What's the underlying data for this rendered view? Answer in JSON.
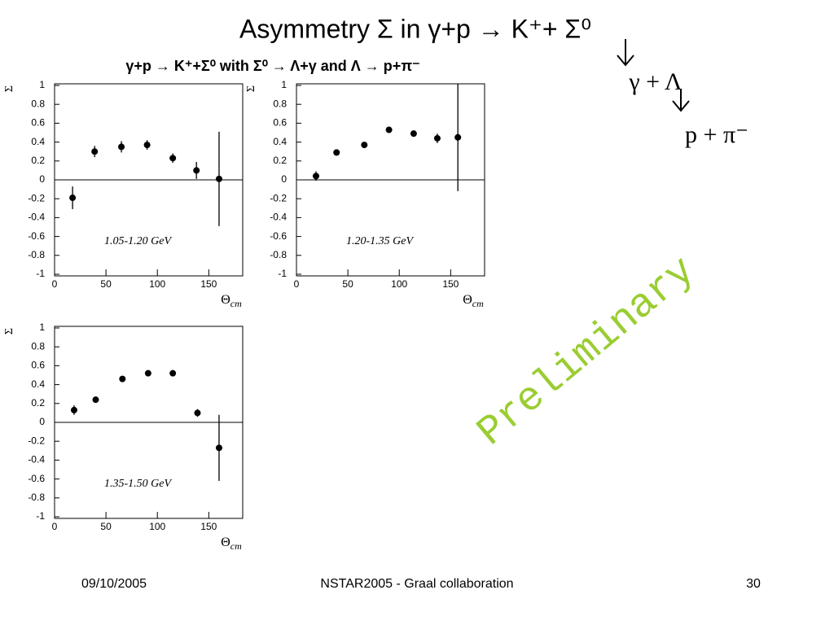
{
  "title": "Asymmetry Σ   in   γ+p → K⁺+ Σ⁰",
  "subtitle": "γ+p → K⁺+Σ⁰ with Σ⁰ → Λ+γ and Λ → p+π⁻",
  "decay": [
    "γ + Λ",
    "p + π⁻"
  ],
  "watermark": "Preliminary",
  "footer": {
    "date": "09/10/2005",
    "event": "NSTAR2005 - Graal collaboration",
    "page": "30"
  },
  "chart_data": [
    {
      "type": "scatter",
      "annotation": "1.05-1.20 GeV",
      "ylabel": "Σ",
      "xlabel": {
        "symbol": "Θ",
        "subscript": "cm"
      },
      "x": [
        17.5,
        39,
        65,
        90,
        115,
        138,
        160
      ],
      "values": [
        -0.19,
        0.3,
        0.35,
        0.37,
        0.23,
        0.1,
        0.01
      ],
      "errors": [
        0.12,
        0.06,
        0.06,
        0.05,
        0.05,
        0.09,
        0.5
      ],
      "color": "#000000",
      "xlim": [
        0,
        183
      ],
      "ylim": [
        -1,
        1
      ],
      "xticks": [
        0,
        50,
        100,
        150
      ],
      "yticks": [
        -1,
        -0.8,
        -0.6,
        -0.4,
        -0.2,
        0,
        0.2,
        0.4,
        0.6,
        0.8,
        1
      ]
    },
    {
      "type": "scatter",
      "annotation": "1.20-1.35 GeV",
      "ylabel": "Σ",
      "xlabel": {
        "symbol": "Θ",
        "subscript": "cm"
      },
      "x": [
        19,
        39,
        66,
        90,
        114,
        137,
        157
      ],
      "values": [
        0.04,
        0.29,
        0.37,
        0.53,
        0.49,
        0.44,
        0.45
      ],
      "errors": [
        0.05,
        0.02,
        0.02,
        0.02,
        0.02,
        0.05,
        0.57
      ],
      "color": "#000000",
      "xlim": [
        0,
        183
      ],
      "ylim": [
        -1,
        1
      ],
      "xticks": [
        0,
        50,
        100,
        150
      ],
      "yticks": [
        -1,
        -0.8,
        -0.6,
        -0.4,
        -0.2,
        0,
        0.2,
        0.4,
        0.6,
        0.8,
        1
      ]
    },
    {
      "type": "scatter",
      "annotation": "1.35-1.50 GeV",
      "ylabel": "Σ",
      "xlabel": {
        "symbol": "Θ",
        "subscript": "cm"
      },
      "x": [
        19,
        40,
        66,
        91,
        115,
        139,
        160
      ],
      "values": [
        0.13,
        0.24,
        0.46,
        0.52,
        0.52,
        0.1,
        -0.27
      ],
      "errors": [
        0.05,
        0.02,
        0.02,
        0.02,
        0.02,
        0.04,
        0.35
      ],
      "color": "#000000",
      "xlim": [
        0,
        183
      ],
      "ylim": [
        -1,
        1
      ],
      "xticks": [
        0,
        50,
        100,
        150
      ],
      "yticks": [
        -1,
        -0.8,
        -0.6,
        -0.4,
        -0.2,
        0,
        0.2,
        0.4,
        0.6,
        0.8,
        1
      ]
    }
  ]
}
